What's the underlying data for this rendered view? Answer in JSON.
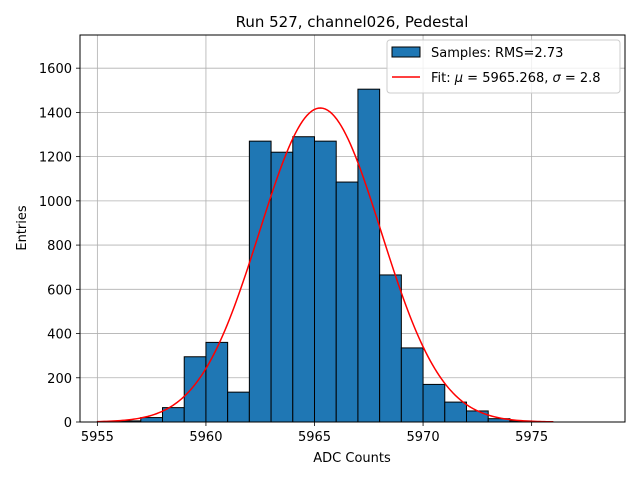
{
  "chart_data": {
    "type": "bar",
    "title": "Run 527, channel026, Pedestal",
    "xlabel": "ADC Counts",
    "ylabel": "Entries",
    "xlim": [
      5954.2,
      5979.3
    ],
    "ylim": [
      0,
      1750
    ],
    "xticks": [
      5955,
      5960,
      5965,
      5970,
      5975
    ],
    "yticks": [
      0,
      200,
      400,
      600,
      800,
      1000,
      1200,
      1400,
      1600
    ],
    "grid": true,
    "legend_position": "top-right",
    "bar_color": "#1f77b4",
    "fit_color": "#ff0000",
    "bins": {
      "edges": [
        5955,
        5956,
        5957,
        5958,
        5959,
        5960,
        5961,
        5962,
        5963,
        5964,
        5965,
        5966,
        5967,
        5968,
        5969,
        5970,
        5971,
        5972,
        5973,
        5974,
        5975,
        5976
      ],
      "counts": [
        2,
        5,
        20,
        65,
        295,
        360,
        135,
        1270,
        1220,
        1290,
        1270,
        1085,
        1505,
        665,
        335,
        170,
        90,
        50,
        15,
        5,
        0
      ]
    },
    "fit": {
      "mu": 5965.268,
      "sigma": 2.8,
      "peak": 1420,
      "x_range": [
        5955,
        5976
      ]
    },
    "legend": {
      "samples_label": "Samples: RMS=2.73",
      "fit_label_prefix": "Fit: ",
      "fit_mu_symbol": "μ",
      "fit_mu_text": " = 5965.268, ",
      "fit_sigma_symbol": "σ",
      "fit_sigma_text": " = 2.8"
    }
  }
}
